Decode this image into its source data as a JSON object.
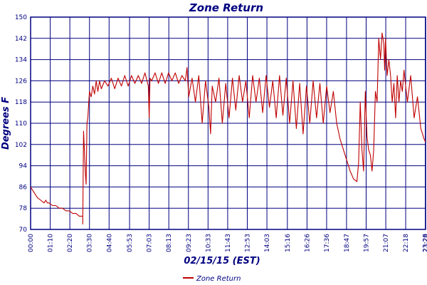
{
  "chart_data": {
    "type": "line",
    "title": "Zone Return",
    "xlabel": "02/15/15 (EST)",
    "ylabel": "Degrees F",
    "ylim": [
      70,
      150
    ],
    "y_ticks": [
      70,
      78,
      86,
      94,
      102,
      110,
      118,
      126,
      134,
      142,
      150
    ],
    "x_tick_labels": [
      "00:00",
      "01:10",
      "02:20",
      "03:30",
      "04:40",
      "05:53",
      "07:03",
      "08:13",
      "09:23",
      "10:33",
      "11:43",
      "12:53",
      "14:03",
      "15:16",
      "16:26",
      "17:36",
      "18:47",
      "19:57",
      "21:07",
      "22:18",
      "23:28",
      "23:29"
    ],
    "x_tick_hours": [
      0,
      1.1667,
      2.3333,
      3.5,
      4.6667,
      5.8833,
      7.05,
      8.2167,
      9.3833,
      10.55,
      11.7167,
      12.8833,
      14.05,
      15.2667,
      16.4333,
      17.6,
      18.7833,
      19.95,
      21.1167,
      22.3,
      23.4667,
      23.4833
    ],
    "grid": true,
    "legend_position": "bottom-left",
    "series": [
      {
        "name": "Zone Return",
        "color": "#c00000",
        "x": [
          0.0,
          0.2,
          0.4,
          0.6,
          0.8,
          0.9,
          1.0,
          1.1,
          1.3,
          1.5,
          1.7,
          1.9,
          2.1,
          2.3,
          2.5,
          2.7,
          2.9,
          3.0,
          3.1,
          3.1,
          3.15,
          3.2,
          3.25,
          3.3,
          3.35,
          3.4,
          3.45,
          3.5,
          3.6,
          3.7,
          3.8,
          3.9,
          4.0,
          4.1,
          4.2,
          4.4,
          4.6,
          4.8,
          5.0,
          5.2,
          5.4,
          5.6,
          5.8,
          6.0,
          6.2,
          6.4,
          6.6,
          6.8,
          7.0,
          7.05,
          7.1,
          7.2,
          7.4,
          7.6,
          7.8,
          8.0,
          8.2,
          8.4,
          8.6,
          8.8,
          9.0,
          9.2,
          9.3,
          9.4,
          9.6,
          9.8,
          10.0,
          10.2,
          10.4,
          10.6,
          10.7,
          10.8,
          11.0,
          11.2,
          11.4,
          11.6,
          11.8,
          12.0,
          12.2,
          12.4,
          12.6,
          12.8,
          13.0,
          13.2,
          13.4,
          13.6,
          13.8,
          14.0,
          14.2,
          14.4,
          14.6,
          14.8,
          15.0,
          15.2,
          15.4,
          15.6,
          15.8,
          16.0,
          16.2,
          16.4,
          16.6,
          16.8,
          17.0,
          17.2,
          17.4,
          17.6,
          17.8,
          18.0,
          18.2,
          18.4,
          18.6,
          18.8,
          19.0,
          19.2,
          19.4,
          19.5,
          19.6,
          19.7,
          19.8,
          19.9,
          20.0,
          20.1,
          20.2,
          20.3,
          20.4,
          20.5,
          20.6,
          20.7,
          20.8,
          20.9,
          21.0,
          21.05,
          21.1,
          21.2,
          21.3,
          21.4,
          21.5,
          21.6,
          21.7,
          21.8,
          21.9,
          22.0,
          22.1,
          22.2,
          22.4,
          22.6,
          22.8,
          23.0,
          23.2,
          23.3,
          23.4,
          23.48
        ],
        "values": [
          86,
          84,
          82,
          81,
          80,
          81,
          80,
          80,
          79,
          79,
          78,
          78,
          77,
          77,
          76,
          76,
          75,
          75,
          75,
          72,
          107,
          100,
          92,
          87,
          110,
          112,
          117,
          122,
          120,
          124,
          121,
          126,
          122,
          126,
          123,
          126,
          124,
          127,
          123,
          127,
          124,
          128,
          124,
          128,
          125,
          128,
          125,
          129,
          124,
          112,
          127,
          126,
          129,
          125,
          129,
          125,
          129,
          126,
          129,
          125,
          128,
          126,
          131,
          120,
          127,
          118,
          128,
          110,
          126,
          116,
          106,
          124,
          118,
          127,
          110,
          125,
          112,
          127,
          115,
          128,
          118,
          126,
          112,
          128,
          118,
          127,
          114,
          128,
          116,
          126,
          112,
          128,
          113,
          127,
          110,
          126,
          108,
          125,
          106,
          124,
          110,
          126,
          112,
          125,
          110,
          124,
          114,
          122,
          110,
          104,
          100,
          96,
          92,
          89,
          88,
          95,
          118,
          100,
          92,
          122,
          105,
          100,
          98,
          92,
          100,
          122,
          118,
          142,
          134,
          144,
          140,
          130,
          142,
          128,
          134,
          128,
          118,
          125,
          112,
          128,
          118,
          126,
          122,
          130,
          118,
          128,
          112,
          120,
          108,
          106,
          104,
          103
        ]
      }
    ]
  }
}
